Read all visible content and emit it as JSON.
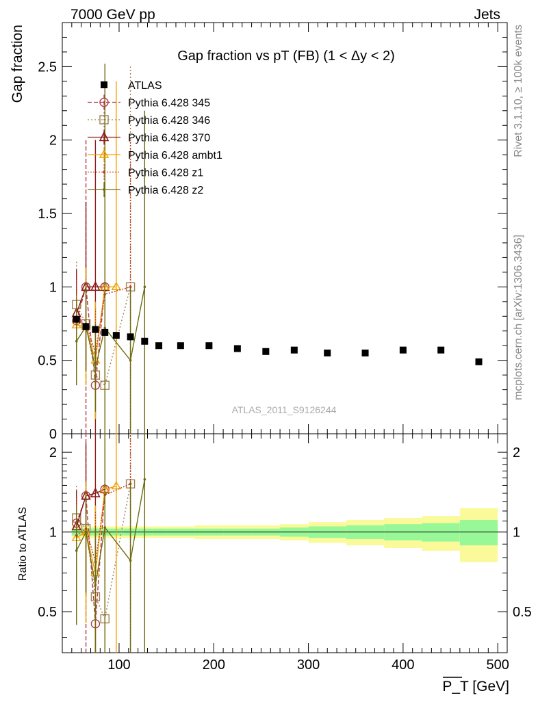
{
  "header": {
    "left": "7000 GeV pp",
    "right": "Jets"
  },
  "side_text": {
    "top": "Rivet 3.1.10, ≥ 100k events",
    "bottom": "mcplots.cern.ch [arXiv:1306.3436]"
  },
  "watermark": "ATLAS_2011_S9126244",
  "chart_data": [
    {
      "panel": "main",
      "type": "scatter",
      "title": "Gap fraction vs pT (FB) (1 < Δy < 2)",
      "ylabel": "Gap fraction",
      "xlim": [
        40,
        510
      ],
      "ylim": [
        0,
        2.8
      ],
      "x_ticks": [
        100,
        200,
        300,
        400,
        500
      ],
      "y_ticks": [
        0,
        0.5,
        1,
        1.5,
        2,
        2.5
      ],
      "y_tick_labels": [
        "0",
        "0.5",
        "1",
        "1.5",
        "2",
        "2.5"
      ],
      "legend_position": "top-left",
      "data": {
        "name": "ATLAS",
        "color": "#000000",
        "x": [
          55,
          65,
          75,
          85,
          97,
          112,
          127,
          142,
          165,
          195,
          225,
          255,
          285,
          320,
          360,
          400,
          440,
          480
        ],
        "y": [
          0.78,
          0.73,
          0.71,
          0.69,
          0.67,
          0.66,
          0.63,
          0.6,
          0.6,
          0.6,
          0.58,
          0.56,
          0.57,
          0.55,
          0.55,
          0.57,
          0.57,
          0.49
        ]
      },
      "series": [
        {
          "name": "Pythia 6.428 345",
          "color": "#b03a48",
          "dash": "6,3",
          "marker": "circle",
          "x": [
            55,
            65,
            75,
            85
          ],
          "y": [
            0.77,
            1.0,
            0.33,
            1.0
          ],
          "err": [
            0.15,
            1.0,
            0.2,
            0.5
          ]
        },
        {
          "name": "Pythia 6.428 346",
          "color": "#a08050",
          "dash": "2,3",
          "marker": "square",
          "x": [
            55,
            65,
            75,
            85,
            112
          ],
          "y": [
            0.88,
            0.75,
            0.4,
            0.33,
            1.0
          ],
          "err": [
            0.3,
            0.4,
            0.3,
            0.3,
            1.5
          ]
        },
        {
          "name": "Pythia 6.428 370",
          "color": "#8b1a1a",
          "dash": "",
          "marker": "triangle",
          "x": [
            55,
            65,
            75,
            85
          ],
          "y": [
            0.82,
            1.0,
            1.0,
            1.0
          ],
          "err": [
            0.3,
            0.58,
            1.0,
            0.6
          ]
        },
        {
          "name": "Pythia 6.428 ambt1",
          "color": "#f0a000",
          "dash": "",
          "marker": "triangle-filled",
          "x": [
            55,
            65,
            75,
            85,
            97
          ],
          "y": [
            0.74,
            0.73,
            0.5,
            1.0,
            1.0
          ],
          "err": [
            0.2,
            0.4,
            0.4,
            1.4,
            1.4
          ]
        },
        {
          "name": "Pythia 6.428 z1",
          "color": "#c0401a",
          "dash": "2,2",
          "marker": "dot",
          "x": [
            55,
            65,
            75,
            85,
            112
          ],
          "y": [
            0.76,
            0.75,
            0.55,
            0.95,
            1.0
          ],
          "err": [
            0.3,
            0.3,
            0.3,
            0.5,
            1.0
          ]
        },
        {
          "name": "Pythia 6.428 z2",
          "color": "#6b6b10",
          "dash": "",
          "marker": "dot",
          "x": [
            55,
            65,
            75,
            85,
            112,
            127
          ],
          "y": [
            0.63,
            0.73,
            0.45,
            0.72,
            0.5,
            1.0
          ],
          "err": [
            0.3,
            0.3,
            0.3,
            1.8,
            0.5,
            1.2
          ]
        }
      ]
    },
    {
      "panel": "ratio",
      "type": "scatter",
      "xlabel": "P_T [GeV]",
      "ylabel": "Ratio to ATLAS",
      "xlim": [
        40,
        510
      ],
      "ylim": [
        0.35,
        2.35
      ],
      "x_ticks": [
        100,
        200,
        300,
        400,
        500
      ],
      "x_tick_labels": [
        "100",
        "200",
        "300",
        "400",
        "500"
      ],
      "y_ticks": [
        0.5,
        1,
        2
      ],
      "y_tick_labels": [
        "0.5",
        "1",
        "2"
      ],
      "reference_line": 1,
      "uncertainty_bands": {
        "x_edges": [
          50,
          60,
          70,
          80,
          90,
          105,
          120,
          135,
          150,
          180,
          210,
          240,
          270,
          300,
          340,
          380,
          420,
          460,
          500
        ],
        "inner": [
          0.03,
          0.03,
          0.03,
          0.03,
          0.03,
          0.03,
          0.03,
          0.03,
          0.03,
          0.03,
          0.03,
          0.03,
          0.04,
          0.05,
          0.06,
          0.07,
          0.08,
          0.11
        ],
        "outer": [
          0.05,
          0.05,
          0.05,
          0.05,
          0.05,
          0.05,
          0.05,
          0.05,
          0.05,
          0.06,
          0.06,
          0.06,
          0.07,
          0.09,
          0.11,
          0.13,
          0.15,
          0.23
        ],
        "inner_color": "#98f898",
        "outer_color": "#fafa9a"
      },
      "series": [
        {
          "name": "Pythia 6.428 345",
          "color": "#b03a48",
          "dash": "6,3",
          "marker": "circle",
          "x": [
            55,
            65,
            75,
            85
          ],
          "y": [
            1.08,
            1.37,
            0.45,
            1.45
          ]
        },
        {
          "name": "Pythia 6.428 346",
          "color": "#a08050",
          "dash": "2,3",
          "marker": "square",
          "x": [
            55,
            65,
            75,
            85,
            112
          ],
          "y": [
            1.13,
            1.03,
            0.57,
            0.47,
            1.52
          ]
        },
        {
          "name": "Pythia 6.428 370",
          "color": "#8b1a1a",
          "dash": "",
          "marker": "triangle",
          "x": [
            55,
            65,
            75,
            85
          ],
          "y": [
            1.05,
            1.37,
            1.4,
            1.45
          ]
        },
        {
          "name": "Pythia 6.428 ambt1",
          "color": "#f0a000",
          "dash": "",
          "marker": "triangle-filled",
          "x": [
            55,
            65,
            75,
            85,
            97
          ],
          "y": [
            0.95,
            1.0,
            0.7,
            1.45,
            1.49
          ]
        },
        {
          "name": "Pythia 6.428 z1",
          "color": "#c0401a",
          "dash": "2,2",
          "marker": "dot",
          "x": [
            55,
            65,
            75,
            85,
            112
          ],
          "y": [
            0.97,
            1.03,
            0.77,
            1.38,
            1.52
          ]
        },
        {
          "name": "Pythia 6.428 z2",
          "color": "#6b6b10",
          "dash": "",
          "marker": "dot",
          "x": [
            55,
            65,
            75,
            85,
            112,
            127
          ],
          "y": [
            0.85,
            1.0,
            0.63,
            1.04,
            0.78,
            1.58
          ]
        }
      ]
    }
  ]
}
